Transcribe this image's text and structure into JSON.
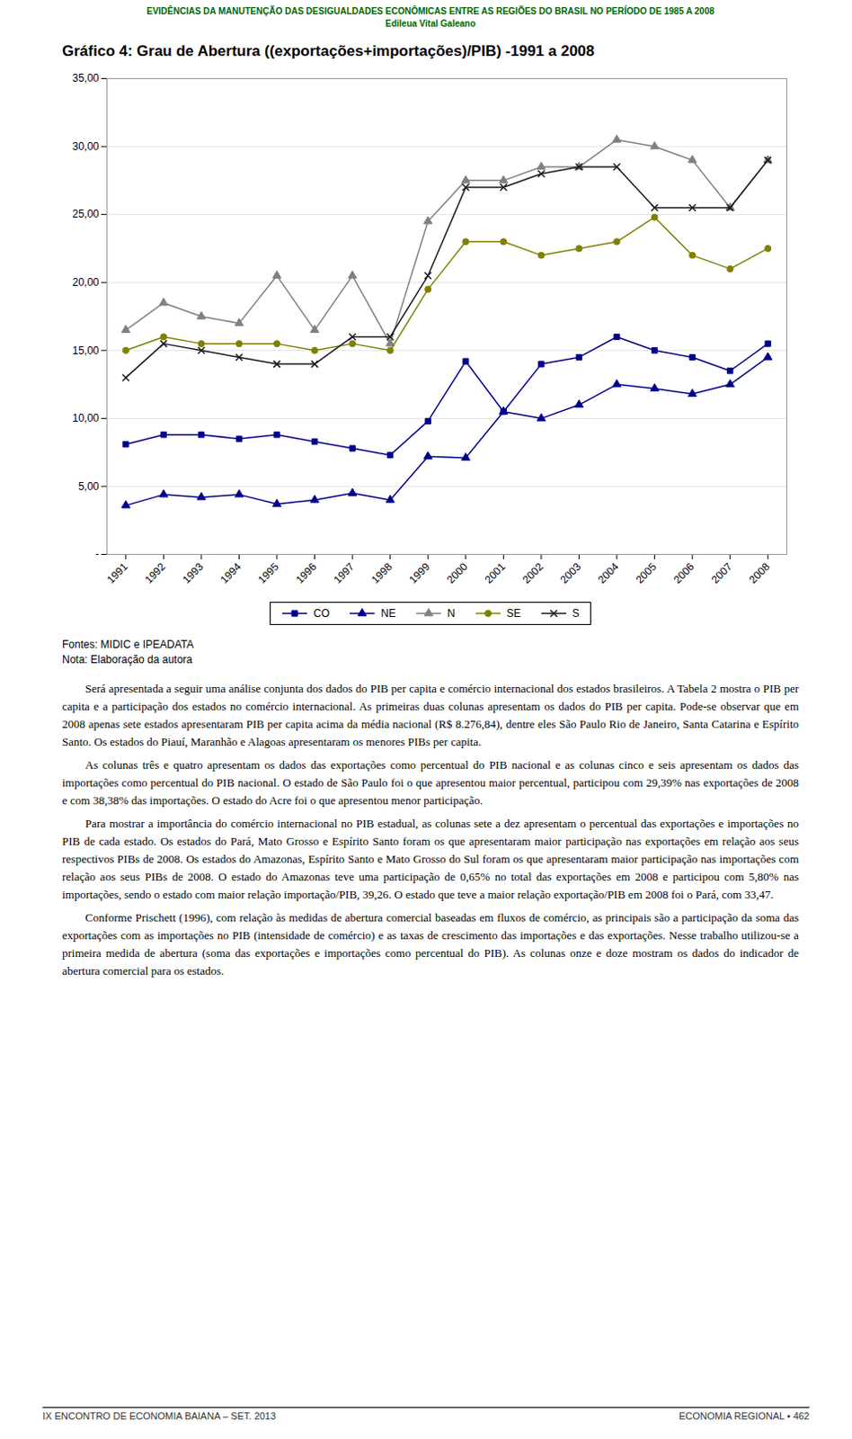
{
  "chart_data": {
    "type": "line",
    "title": "Gráfico 4: Grau de Abertura ((exportações+importações)/PIB) -1991 a 2008",
    "annotations": [
      "EVIDÊNCIAS DA MANUTENÇÃO DAS DESIGUALDADES ECONÔMICAS ENTRE AS REGIÕES DO BRASIL NO PERÍODO DE 1985 A 2008",
      "Edileua Vital Galeano",
      "Fontes: MIDIC e IPEADATA",
      "Nota: Elaboração da autora",
      "Será apresentada a seguir uma análise conjunta dos dados do PIB per capita e comércio internacional dos estados brasileiros. A Tabela 2 mostra o PIB per capita e a participação dos estados no comércio internacional. As primeiras duas colunas apresentam os dados do PIB per capita. Pode-se observar que em 2008 apenas sete estados apresentaram PIB per capita acima da média nacional (R$ 8.276,84), dentre eles São Paulo Rio de Janeiro, Santa Catarina e Espírito Santo. Os estados do Piauí, Maranhão e Alagoas apresentaram os menores PIBs per capita.",
      "As colunas três e quatro apresentam os dados das exportações como percentual do PIB nacional e as colunas cinco e seis apresentam os dados das importações como percentual do PIB nacional. O estado de São Paulo foi o que apresentou maior percentual, participou com 29,39% nas exportações de 2008 e com 38,38% das importações. O estado do Acre foi o que apresentou menor participação.",
      "Para mostrar a importância do comércio internacional no PIB estadual, as colunas sete a dez apresentam o percentual das exportações e importações no PIB de cada estado. Os estados do Pará, Mato Grosso e Espírito Santo foram os que apresentaram maior participação nas exportações em relação aos seus respectivos PIBs de 2008. Os estados do Amazonas, Espírito Santo e Mato Grosso do Sul foram os que apresentaram maior participação nas importações com relação aos seus PIBs de 2008. O estado do Amazonas teve uma participação de 0,65% no total das exportações em 2008 e participou com 5,80% nas importações, sendo o estado com maior relação importação/PIB, 39,26. O estado que teve a maior relação exportação/PIB em 2008 foi o Pará, com 33,47.",
      "Conforme Prischett (1996), com relação às medidas de abertura comercial baseadas em fluxos de comércio, as principais são a participação da soma das exportações com as importações no PIB (intensidade de comércio) e as taxas de crescimento das importações e das exportações. Nesse trabalho utilizou-se a primeira medida de abertura (soma das exportações e importações como percentual do PIB). As colunas onze e doze mostram os dados do indicador de abertura comercial para os estados.",
      "IX ENCONTRO DE ECONOMIA BAIANA – SET. 2013",
      "ECONOMIA REGIONAL    •    462"
    ],
    "x": [
      1991,
      1992,
      1993,
      1994,
      1995,
      1996,
      1997,
      1998,
      1999,
      2000,
      2001,
      2002,
      2003,
      2004,
      2005,
      2006,
      2007,
      2008
    ],
    "xlim": [
      1990.5,
      2008.5
    ],
    "xticks": [
      1991,
      1992,
      1993,
      1994,
      1995,
      1996,
      1997,
      1998,
      1999,
      2000,
      2001,
      2002,
      2003,
      2004,
      2005,
      2006,
      2007,
      2008
    ],
    "ylim": [
      0,
      35
    ],
    "yticks": [
      {
        "value": 0,
        "label": "-"
      },
      {
        "value": 5,
        "label": "5,00"
      },
      {
        "value": 10,
        "label": "10,00"
      },
      {
        "value": 15,
        "label": "15,00"
      },
      {
        "value": 20,
        "label": "20,00"
      },
      {
        "value": 25,
        "label": "25,00"
      },
      {
        "value": 30,
        "label": "30,00"
      },
      {
        "value": 35,
        "label": "35,00"
      }
    ],
    "grid": true,
    "legend": "bottom",
    "series": [
      {
        "name": "CO",
        "color": "#00008B",
        "marker": "square",
        "line_style": "solid",
        "values": [
          8.1,
          8.8,
          8.8,
          8.5,
          8.8,
          8.3,
          7.8,
          7.3,
          9.8,
          14.2,
          10.5,
          14.0,
          14.5,
          16.0,
          15.0,
          14.5,
          13.5,
          15.5
        ]
      },
      {
        "name": "NE",
        "color": "#00008B",
        "marker": "triangle",
        "line_style": "solid",
        "values": [
          3.6,
          4.4,
          4.2,
          4.4,
          3.7,
          4.0,
          4.5,
          4.0,
          7.2,
          7.1,
          10.5,
          10.0,
          11.0,
          12.5,
          12.2,
          11.8,
          12.5,
          14.5
        ]
      },
      {
        "name": "N",
        "color": "#808080",
        "marker": "triangle",
        "line_style": "solid",
        "values": [
          16.5,
          18.5,
          17.5,
          17.0,
          20.5,
          16.5,
          20.5,
          15.5,
          24.5,
          27.5,
          27.5,
          28.5,
          28.5,
          30.5,
          30.0,
          29.0,
          25.5,
          29.0
        ]
      },
      {
        "name": "SE",
        "color": "#808000",
        "marker": "circle",
        "line_style": "solid",
        "values": [
          15.0,
          16.0,
          15.5,
          15.5,
          15.5,
          15.0,
          15.5,
          15.0,
          19.5,
          23.0,
          23.0,
          22.0,
          22.5,
          23.0,
          24.8,
          22.0,
          21.0,
          22.5
        ]
      },
      {
        "name": "S",
        "color": "#1a1a1a",
        "marker": "x",
        "line_style": "solid",
        "values": [
          13.0,
          15.5,
          15.0,
          14.5,
          14.0,
          14.0,
          16.0,
          16.0,
          20.5,
          27.0,
          27.0,
          28.0,
          28.5,
          28.5,
          25.5,
          25.5,
          25.5,
          29.0
        ]
      }
    ]
  }
}
